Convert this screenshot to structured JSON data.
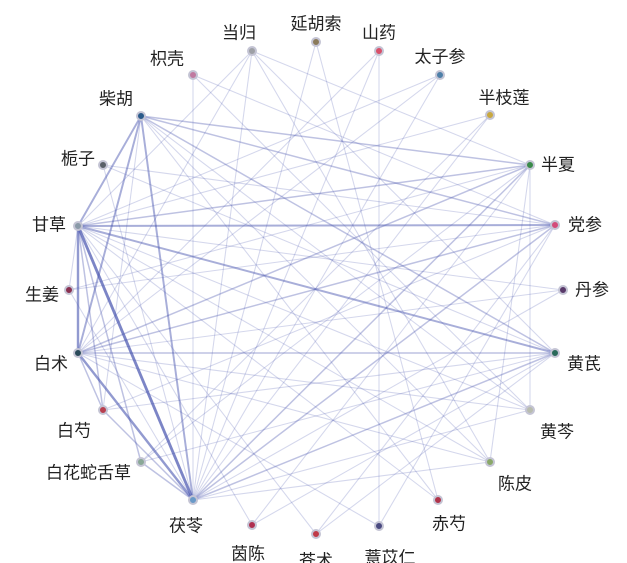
{
  "nodes": [
    {
      "id": "n_danggui",
      "label": "当归",
      "color": "#9ea0a6"
    },
    {
      "id": "n_yanhusuo",
      "label": "延胡索",
      "color": "#8a7a5a"
    },
    {
      "id": "n_shanyao",
      "label": "山药",
      "color": "#d9506a"
    },
    {
      "id": "n_taizishen",
      "label": "太子参",
      "color": "#4d7fa8"
    },
    {
      "id": "n_banzhilian",
      "label": "半枝莲",
      "color": "#c8a840"
    },
    {
      "id": "n_banxia",
      "label": "半夏",
      "color": "#3a8a4a"
    },
    {
      "id": "n_dangshen",
      "label": "党参",
      "color": "#d44c7a"
    },
    {
      "id": "n_danshen",
      "label": "丹参",
      "color": "#5a3a6a"
    },
    {
      "id": "n_huangqi",
      "label": "黄芪",
      "color": "#2a6a5a"
    },
    {
      "id": "n_huangqin",
      "label": "黄芩",
      "color": "#b8bcae"
    },
    {
      "id": "n_chenpi",
      "label": "陈皮",
      "color": "#8aa86a"
    },
    {
      "id": "n_chishao",
      "label": "赤芍",
      "color": "#b0334a"
    },
    {
      "id": "n_yiyiren",
      "label": "薏苡仁",
      "color": "#4a4a80"
    },
    {
      "id": "n_cangzhu",
      "label": "苍术",
      "color": "#c03a48"
    },
    {
      "id": "n_yinchen",
      "label": "茵陈",
      "color": "#b03050"
    },
    {
      "id": "n_fuling",
      "label": "茯苓",
      "color": "#6a9ac8"
    },
    {
      "id": "n_baihuasheshecao",
      "label": "白花蛇舌草",
      "color": "#8aa898"
    },
    {
      "id": "n_baishao",
      "label": "白芍",
      "color": "#b84050"
    },
    {
      "id": "n_baizhu",
      "label": "白术",
      "color": "#2a4a5a"
    },
    {
      "id": "n_shengjiang",
      "label": "生姜",
      "color": "#8a3050"
    },
    {
      "id": "n_gancao",
      "label": "甘草",
      "color": "#8a9aa8"
    },
    {
      "id": "n_zhizi",
      "label": "栀子",
      "color": "#5a6068"
    },
    {
      "id": "n_chaihu",
      "label": "柴胡",
      "color": "#2a5a8a"
    },
    {
      "id": "n_zhiqiao",
      "label": "枳壳",
      "color": "#c07aa0"
    }
  ],
  "edges": [
    [
      "n_gancao",
      "n_fuling",
      5
    ],
    [
      "n_baizhu",
      "n_fuling",
      4
    ],
    [
      "n_gancao",
      "n_baizhu",
      4
    ],
    [
      "n_chaihu",
      "n_gancao",
      3
    ],
    [
      "n_chaihu",
      "n_fuling",
      3
    ],
    [
      "n_chaihu",
      "n_baizhu",
      3
    ],
    [
      "n_chaihu",
      "n_banxia",
      2
    ],
    [
      "n_chaihu",
      "n_dangshen",
      2
    ],
    [
      "n_gancao",
      "n_banxia",
      2
    ],
    [
      "n_gancao",
      "n_dangshen",
      3
    ],
    [
      "n_gancao",
      "n_huangqi",
      3
    ],
    [
      "n_baizhu",
      "n_dangshen",
      2
    ],
    [
      "n_baizhu",
      "n_huangqi",
      2
    ],
    [
      "n_fuling",
      "n_huangqi",
      2
    ],
    [
      "n_fuling",
      "n_banxia",
      2
    ],
    [
      "n_fuling",
      "n_dangshen",
      2
    ],
    [
      "n_baizhu",
      "n_banxia",
      2
    ],
    [
      "n_gancao",
      "n_baishao",
      2
    ],
    [
      "n_baishao",
      "n_fuling",
      2
    ],
    [
      "n_baizhu",
      "n_baishao",
      2
    ],
    [
      "n_gancao",
      "n_baihuasheshecao",
      2
    ],
    [
      "n_fuling",
      "n_baihuasheshecao",
      2
    ],
    [
      "n_chaihu",
      "n_huangqi",
      2
    ],
    [
      "n_danggui",
      "n_fuling",
      1
    ],
    [
      "n_danggui",
      "n_huangqi",
      1
    ],
    [
      "n_danggui",
      "n_gancao",
      1
    ],
    [
      "n_danggui",
      "n_baizhu",
      1
    ],
    [
      "n_danggui",
      "n_chenpi",
      1
    ],
    [
      "n_zhiqiao",
      "n_dangshen",
      1
    ],
    [
      "n_zhiqiao",
      "n_fuling",
      1
    ],
    [
      "n_zhiqiao",
      "n_huangqin",
      1
    ],
    [
      "n_zhizi",
      "n_huangqi",
      1
    ],
    [
      "n_zhizi",
      "n_fuling",
      1
    ],
    [
      "n_gancao",
      "n_huangqin",
      1
    ],
    [
      "n_gancao",
      "n_chenpi",
      1
    ],
    [
      "n_gancao",
      "n_danshen",
      1
    ],
    [
      "n_gancao",
      "n_shengjiang",
      1
    ],
    [
      "n_shengjiang",
      "n_fuling",
      1
    ],
    [
      "n_shengjiang",
      "n_banxia",
      1
    ],
    [
      "n_baizhu",
      "n_chenpi",
      1
    ],
    [
      "n_baizhu",
      "n_huangqin",
      1
    ],
    [
      "n_baizhu",
      "n_danshen",
      1
    ],
    [
      "n_fuling",
      "n_chenpi",
      1
    ],
    [
      "n_fuling",
      "n_huangqin",
      1
    ],
    [
      "n_fuling",
      "n_taizishen",
      1
    ],
    [
      "n_fuling",
      "n_banzhilian",
      1
    ],
    [
      "n_fuling",
      "n_shanyao",
      1
    ],
    [
      "n_baishao",
      "n_huangqi",
      1
    ],
    [
      "n_baishao",
      "n_dangshen",
      1
    ],
    [
      "n_baihuasheshecao",
      "n_banzhilian",
      1
    ],
    [
      "n_baihuasheshecao",
      "n_huangqi",
      1
    ],
    [
      "n_chaihu",
      "n_huangqin",
      1
    ],
    [
      "n_chaihu",
      "n_chenpi",
      1
    ],
    [
      "n_chaihu",
      "n_baishao",
      1
    ],
    [
      "n_chaihu",
      "n_chishao",
      1
    ],
    [
      "n_yanhusuo",
      "n_fuling",
      1
    ],
    [
      "n_yanhusuo",
      "n_chishao",
      1
    ],
    [
      "n_shanyao",
      "n_baizhu",
      1
    ],
    [
      "n_shanyao",
      "n_yiyiren",
      1
    ],
    [
      "n_taizishen",
      "n_gancao",
      1
    ],
    [
      "n_taizishen",
      "n_baizhu",
      1
    ],
    [
      "n_banzhilian",
      "n_gancao",
      1
    ],
    [
      "n_banxia",
      "n_yinchen",
      1
    ],
    [
      "n_banxia",
      "n_baihuasheshecao",
      1
    ],
    [
      "n_dangshen",
      "n_yiyiren",
      1
    ],
    [
      "n_dangshen",
      "n_cangzhu",
      1
    ],
    [
      "n_huangqi",
      "n_yinchen",
      1
    ],
    [
      "n_huangqi",
      "n_cangzhu",
      1
    ],
    [
      "n_danshen",
      "n_fuling",
      1
    ],
    [
      "n_chenpi",
      "n_banxia",
      1
    ],
    [
      "n_yiyiren",
      "n_baizhu",
      1
    ],
    [
      "n_cangzhu",
      "n_gancao",
      1
    ],
    [
      "n_yinchen",
      "n_gancao",
      1
    ],
    [
      "n_chishao",
      "n_gancao",
      1
    ],
    [
      "n_huangqin",
      "n_banxia",
      1
    ],
    [
      "n_danggui",
      "n_banxia",
      1
    ],
    [
      "n_zhizi",
      "n_dangshen",
      1
    ],
    [
      "n_shengjiang",
      "n_dangshen",
      1
    ]
  ]
}
